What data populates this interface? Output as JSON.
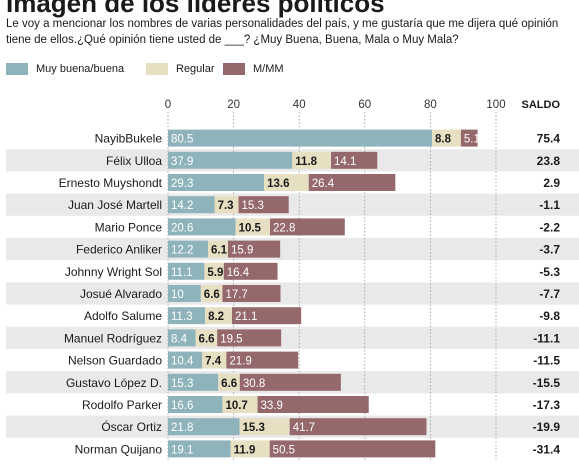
{
  "header": {
    "title": "Imagen de los líderes políticos",
    "subtitle": "Le voy a mencionar los nombres de varias personalidades del país, y me gustaría que me dijera qué opinión tiene de ellos.¿Qué opinión tiene usted  de ___? ¿Muy Buena, Buena, Mala o Muy Mala?"
  },
  "colors": {
    "muy_buena": "#8fb3ba",
    "regular": "#e6dfc2",
    "mala": "#95686c",
    "row_alt": "#e9e9e9"
  },
  "chart_data": {
    "type": "bar",
    "stacked": true,
    "orientation": "horizontal",
    "title": "Imagen de los líderes políticos",
    "xlim": [
      0,
      100
    ],
    "xticks": [
      "0",
      "20",
      "40",
      "60",
      "80",
      "100"
    ],
    "grid": true,
    "legend_position": "top-left",
    "saldo_label": "SALDO",
    "categories": [
      "NayibBukele",
      "Félix Ulloa",
      "Ernesto Muyshondt",
      "Juan José Martell",
      "Mario Ponce",
      "Federico Anliker",
      "Johnny Wright Sol",
      "Josué Alvarado",
      "Adolfo Salume",
      "Manuel Rodríguez",
      "Nelson Guardado",
      "Gustavo López D.",
      "Rodolfo Parker",
      "Óscar Ortiz",
      "Norman Quijano"
    ],
    "series": [
      {
        "name": "Muy buena/buena",
        "color": "#8fb3ba",
        "values": [
          80.5,
          37.9,
          29.3,
          14.2,
          20.6,
          12.2,
          11.1,
          10,
          11.3,
          8.4,
          10.4,
          15.3,
          16.6,
          21.8,
          19.1
        ]
      },
      {
        "name": "Regular",
        "color": "#e6dfc2",
        "values": [
          8.8,
          11.8,
          13.6,
          7.3,
          10.5,
          6.1,
          5.9,
          6.6,
          8.2,
          6.6,
          7.4,
          6.6,
          10.7,
          15.3,
          11.9
        ]
      },
      {
        "name": "M/MM",
        "color": "#95686c",
        "values": [
          5.1,
          14.1,
          26.4,
          15.3,
          22.8,
          15.9,
          16.4,
          17.7,
          21.1,
          19.5,
          21.9,
          30.8,
          33.9,
          41.7,
          50.5
        ]
      }
    ],
    "saldo": [
      75.4,
      23.8,
      2.9,
      -1.1,
      -2.2,
      -3.7,
      -5.3,
      -7.7,
      -9.8,
      -11.1,
      -11.5,
      -15.5,
      -17.3,
      -19.9,
      -31.4
    ]
  }
}
